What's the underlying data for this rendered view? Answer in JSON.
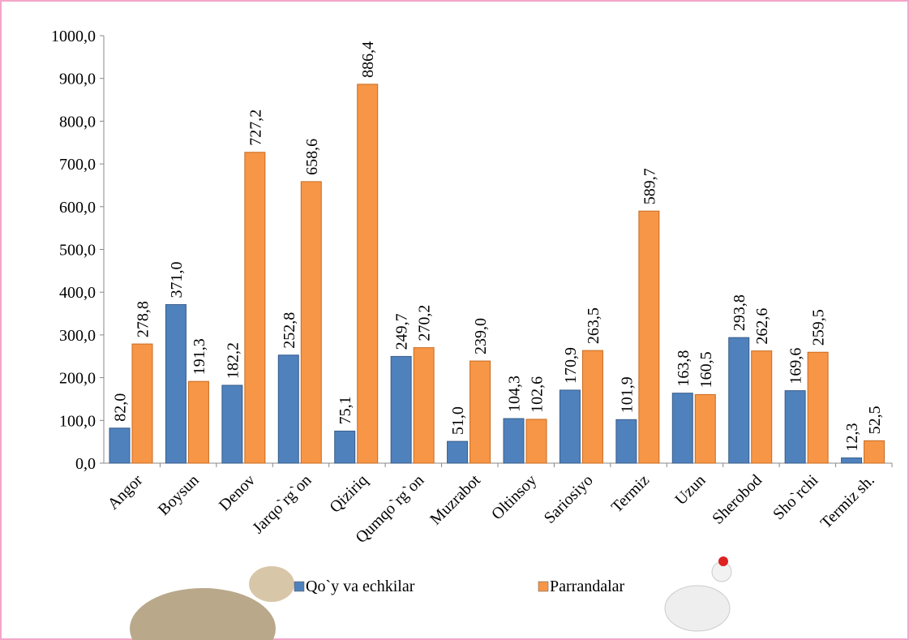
{
  "chart_data": {
    "type": "bar",
    "categories": [
      "Angor",
      "Boysun",
      "Denov",
      "Jarqo`rg`on",
      "Qiziriq",
      "Qumqo`rg`on",
      "Muzrabot",
      "Oltinsoy",
      "Sariosiyo",
      "Termiz",
      "Uzun",
      "Sherobod",
      "Sho`rchi",
      "Termiz sh."
    ],
    "series": [
      {
        "name": "Qo`y va echkilar",
        "color": "#4f81bd",
        "values": [
          82.0,
          371.0,
          182.2,
          252.8,
          75.1,
          249.7,
          51.0,
          104.3,
          170.9,
          101.9,
          163.8,
          293.8,
          169.6,
          12.3
        ],
        "value_labels": [
          "82,0",
          "371,0",
          "182,2",
          "252,8",
          "75,1",
          "249,7",
          "51,0",
          "104,3",
          "170,9",
          "101,9",
          "163,8",
          "293,8",
          "169,6",
          "12,3"
        ]
      },
      {
        "name": "Parrandalar",
        "color": "#f79646",
        "values": [
          278.8,
          191.3,
          727.2,
          658.6,
          886.4,
          270.2,
          239.0,
          102.6,
          263.5,
          589.7,
          160.5,
          262.6,
          259.5,
          52.5
        ],
        "value_labels": [
          "278,8",
          "191,3",
          "727,2",
          "658,6",
          "886,4",
          "270,2",
          "239,0",
          "102,6",
          "263,5",
          "589,7",
          "160,5",
          "262,6",
          "259,5",
          "52,5"
        ]
      }
    ],
    "ylim": [
      0,
      1000
    ],
    "yticks": [
      {
        "value": 0,
        "label": "0,0"
      },
      {
        "value": 100,
        "label": "100,0"
      },
      {
        "value": 200,
        "label": "200,0"
      },
      {
        "value": 300,
        "label": "300,0"
      },
      {
        "value": 400,
        "label": "400,0"
      },
      {
        "value": 500,
        "label": "500,0"
      },
      {
        "value": 600,
        "label": "600,0"
      },
      {
        "value": 700,
        "label": "700,0"
      },
      {
        "value": 800,
        "label": "800,0"
      },
      {
        "value": 900,
        "label": "900,0"
      },
      {
        "value": 1000,
        "label": "1000,0"
      }
    ],
    "grid": false,
    "legend": "bottom"
  }
}
